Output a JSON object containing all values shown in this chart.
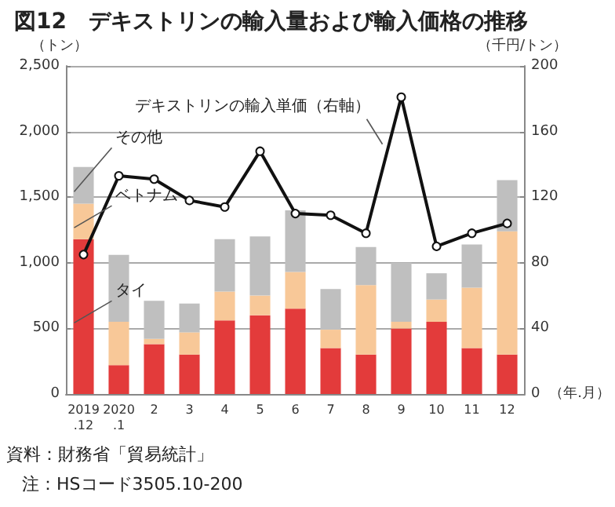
{
  "chart_data": {
    "type": "bar",
    "title": "図12　デキストリンの輸入量および輸入価格の推移",
    "categories": [
      "2019\n.12",
      "2020\n.1",
      "2",
      "3",
      "4",
      "5",
      "6",
      "7",
      "8",
      "9",
      "10",
      "11",
      "12"
    ],
    "stacked": true,
    "series": [
      {
        "name": "タイ",
        "color": "#e33b3b",
        "values": [
          1180,
          220,
          380,
          300,
          560,
          600,
          650,
          350,
          300,
          500,
          550,
          350,
          300
        ]
      },
      {
        "name": "ベトナム",
        "color": "#f8c898",
        "values": [
          270,
          330,
          40,
          170,
          220,
          150,
          280,
          140,
          530,
          50,
          170,
          460,
          940
        ]
      },
      {
        "name": "その他",
        "color": "#bfbfbf",
        "values": [
          280,
          510,
          290,
          220,
          400,
          450,
          470,
          310,
          290,
          450,
          200,
          330,
          390
        ]
      },
      {
        "name": "デキストリンの輸入単価（右軸）",
        "type": "line",
        "axis": "y2",
        "color": "#111111",
        "marker": "circle",
        "values": [
          85,
          133,
          131,
          118,
          114,
          148,
          110,
          109,
          98,
          181,
          90,
          98,
          104
        ]
      }
    ],
    "xlabel": "（年.月）",
    "ylabel": "（トン）",
    "y2label": "（千円/トン）",
    "ylim": [
      0,
      2500
    ],
    "yticks": [
      0,
      500,
      {
        "value": 1000,
        "label": "1,000"
      },
      {
        "value": 1500,
        "label": "1,500"
      },
      {
        "value": 2000,
        "label": "2,000"
      },
      {
        "value": 2500,
        "label": "2,500"
      }
    ],
    "y2lim": [
      0,
      200
    ],
    "y2ticks": [
      0,
      40,
      80,
      120,
      160,
      200
    ],
    "grid": "y",
    "legend": false,
    "annotations": [
      "資料：財務省「貿易統計」",
      "注：HSコード3505.10-200"
    ]
  }
}
